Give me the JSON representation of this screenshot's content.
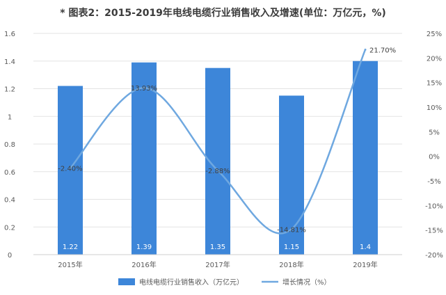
{
  "title": "* 图表2：2015-2019年电线电缆行业销售收入及增速(单位：万亿元，%)",
  "chart_data": {
    "type": "bar",
    "title": "* 图表2：2015-2019年电线电缆行业销售收入及增速(单位：万亿元，%)",
    "categories": [
      "2015年",
      "2016年",
      "2017年",
      "2018年",
      "2019年"
    ],
    "series": [
      {
        "name": "电线电缆行业销售收入（万亿元）",
        "type": "bar",
        "axis": "left",
        "values": [
          1.22,
          1.39,
          1.35,
          1.15,
          1.4
        ],
        "labels": [
          "1.22",
          "1.39",
          "1.35",
          "1.15",
          "1.4"
        ],
        "color": "#3d86d9"
      },
      {
        "name": "增长情况（%）",
        "type": "line",
        "axis": "right",
        "values": [
          -2.4,
          13.93,
          -2.88,
          -14.81,
          21.7
        ],
        "labels": [
          "-2.40%",
          "13.93%",
          "-2.88%",
          "-14.81%",
          "21.70%"
        ],
        "color": "#6fa8e0"
      }
    ],
    "y_left": {
      "min": 0,
      "max": 1.6,
      "ticks": [
        "0",
        "0.2",
        "0.4",
        "0.6",
        "0.8",
        "1",
        "1.2",
        "1.4",
        "1.6"
      ]
    },
    "y_right": {
      "min": -20,
      "max": 25,
      "ticks": [
        "-20%",
        "-15%",
        "-10%",
        "-5%",
        "0%",
        "5%",
        "10%",
        "15%",
        "20%",
        "25%"
      ]
    },
    "grid": true,
    "legend_position": "bottom"
  }
}
